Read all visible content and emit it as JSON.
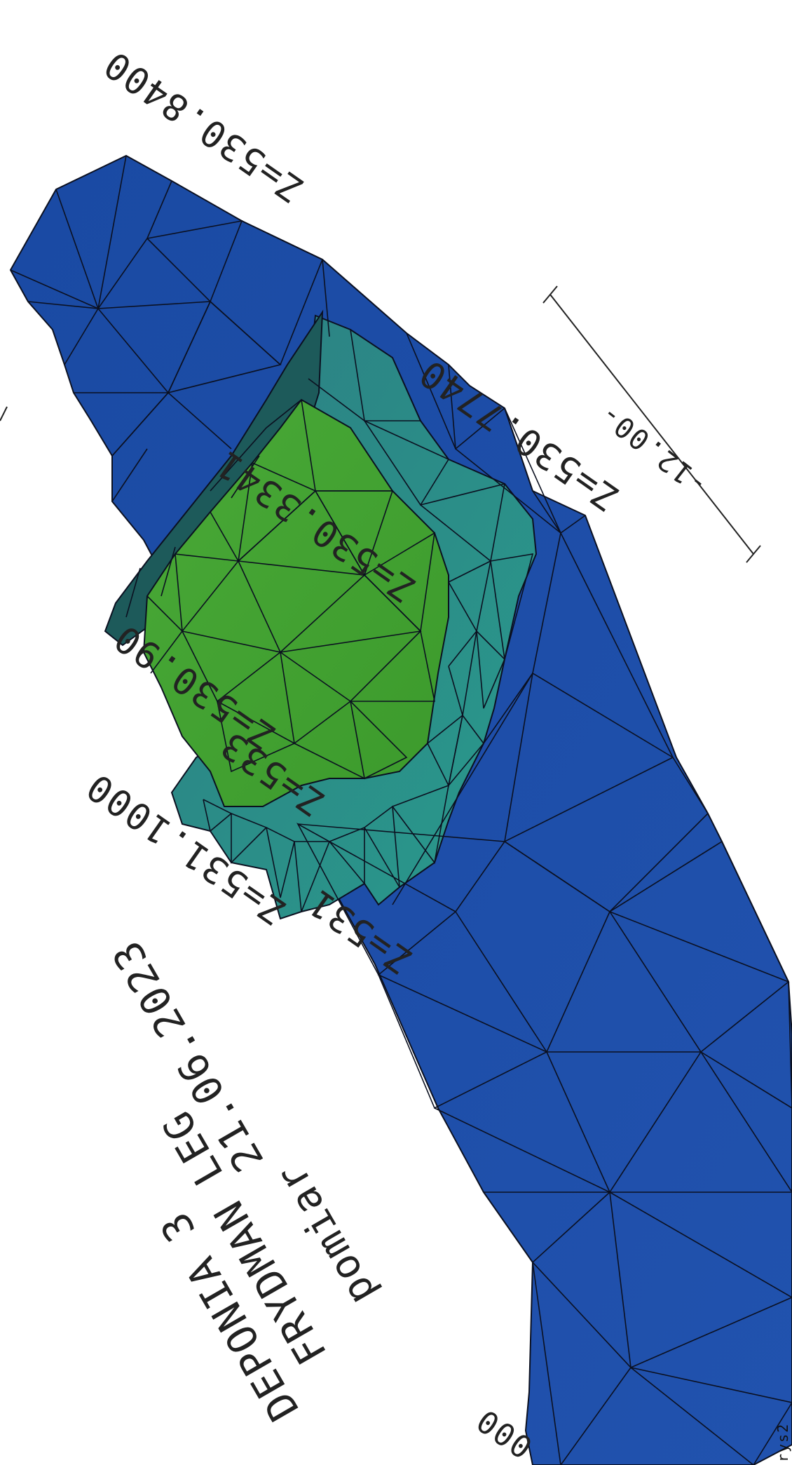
{
  "title_block": {
    "line1": "DEPONIA 3",
    "line2": "FRYDMAN LEG",
    "line3": "pomiar",
    "line4": "21.06.2023"
  },
  "elevation_labels": [
    "Z=530.8400",
    "Z=530.7740",
    "Z=530.3341",
    "Z=530.90",
    "Z=531.1000",
    "Z=531",
    "Z=533"
  ],
  "scale_bar": {
    "label": "-12.00-"
  },
  "corner_marks": {
    "bottom": "000",
    "sheet": "rys2"
  },
  "colors": {
    "base_blue": "#1f4ea6",
    "dark_blue": "#163f8f",
    "mid_teal": "#2a8a86",
    "teal_green": "#2f9a6a",
    "top_green": "#3c9a2e",
    "light_green": "#4fb13a",
    "mesh_line": "#0b1020"
  }
}
